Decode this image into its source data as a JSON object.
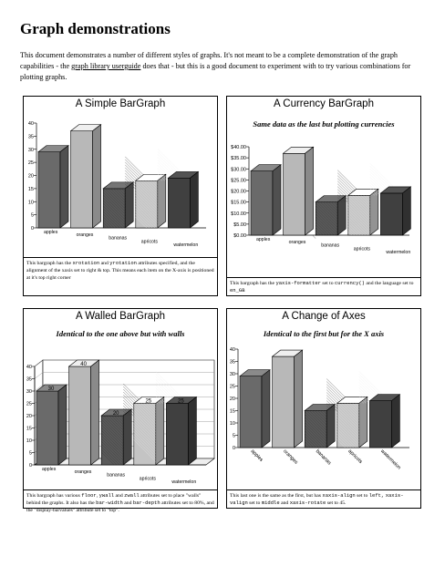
{
  "doc": {
    "title": "Graph demonstrations",
    "intro_before_link": "This document demonstrates a number of different styles of graphs. It's not meant to be a complete demonstration of the graph capabilities - the ",
    "intro_link": "graph library userguide",
    "intro_after_link": " does that - but this is a good document to experiment with to try various combinations for plotting graphs."
  },
  "panels": [
    {
      "title": "A Simple BarGraph",
      "subtitle": "",
      "caption": [
        {
          "t": "This bargraph has the "
        },
        {
          "t": "xrotation",
          "mono": true
        },
        {
          "t": " and "
        },
        {
          "t": "yrotation",
          "mono": true
        },
        {
          "t": " attributes specified, and the alignment of the xaxis set to right & top. This means each item on the X-axis is positioned at it's top right corner"
        }
      ]
    },
    {
      "title": "A Currency BarGraph",
      "subtitle": "Same data as the last but plotting currencies",
      "caption": [
        {
          "t": "This bargraph has the "
        },
        {
          "t": "yaxis-formatter",
          "mono": true
        },
        {
          "t": " set to "
        },
        {
          "t": "currency()",
          "mono": true
        },
        {
          "t": " and the language set to "
        },
        {
          "t": "en_GB",
          "mono": true
        }
      ]
    },
    {
      "title": "A Walled BarGraph",
      "subtitle": "Identical to the one above but with walls",
      "caption": [
        {
          "t": "This bargraph has various "
        },
        {
          "t": "floor",
          "mono": true
        },
        {
          "t": ", "
        },
        {
          "t": "ywall",
          "mono": true
        },
        {
          "t": " and "
        },
        {
          "t": "zwall",
          "mono": true
        },
        {
          "t": " attributes set to place \"walls\" behind the graphs. It also has the "
        },
        {
          "t": "bar-width",
          "mono": true
        },
        {
          "t": " and "
        },
        {
          "t": "bar-depth",
          "mono": true
        },
        {
          "t": " attributes set to 80%, and the \"display-barvalues\" attribute set to \"top\"."
        }
      ]
    },
    {
      "title": "A Change of Axes",
      "subtitle": "Identical to the first but for the X axis",
      "caption": [
        {
          "t": "This last one is the same as the first, but has "
        },
        {
          "t": "xaxis-align",
          "mono": true
        },
        {
          "t": " set to "
        },
        {
          "t": "left,",
          "mono": true
        },
        {
          "t": " "
        },
        {
          "t": "xaxis-valign",
          "mono": true
        },
        {
          "t": " set to "
        },
        {
          "t": "middle",
          "mono": true
        },
        {
          "t": " and "
        },
        {
          "t": "xaxis-rotate",
          "mono": true
        },
        {
          "t": " set to 45."
        }
      ]
    }
  ],
  "chart_data": [
    {
      "type": "bar",
      "title": "A Simple BarGraph",
      "categories": [
        "apples",
        "oranges",
        "bananas",
        "apricots",
        "watermelon"
      ],
      "values": [
        29,
        37,
        15,
        18,
        19
      ],
      "ylim": [
        0,
        40
      ],
      "yticks": [
        "0",
        "5",
        "10",
        "15",
        "20",
        "25",
        "30",
        "35",
        "40"
      ],
      "fills": [
        "#6a6a6a",
        "#b8b8b8",
        "#5a5a5a",
        "#c4c4c4",
        "#404040"
      ]
    },
    {
      "type": "bar",
      "title": "A Currency BarGraph",
      "subtitle": "Same data as the last but plotting currencies",
      "categories": [
        "apples",
        "oranges",
        "bananas",
        "apricots",
        "watermelon"
      ],
      "values": [
        29,
        37,
        15,
        18,
        19
      ],
      "ylim": [
        0,
        40
      ],
      "yticks": [
        "$0.00",
        "$5.00",
        "$10.00",
        "$15.00",
        "$20.00",
        "$25.00",
        "$30.00",
        "$35.00",
        "$40.00"
      ],
      "fills": [
        "#6a6a6a",
        "#b8b8b8",
        "#5a5a5a",
        "#c4c4c4",
        "#404040"
      ]
    },
    {
      "type": "bar",
      "title": "A Walled BarGraph",
      "subtitle": "Identical to the one above but with walls",
      "categories": [
        "apples",
        "oranges",
        "bananas",
        "apricots",
        "watermelon"
      ],
      "values": [
        30,
        40,
        20,
        25,
        25
      ],
      "ylim": [
        0,
        40
      ],
      "yticks": [
        "0",
        "5",
        "10",
        "15",
        "20",
        "25",
        "30",
        "35",
        "40"
      ],
      "bar_labels": [
        "30",
        "40",
        "20",
        "25",
        "25"
      ],
      "walls": true,
      "fills": [
        "#6a6a6a",
        "#b8b8b8",
        "#5a5a5a",
        "#c4c4c4",
        "#404040"
      ]
    },
    {
      "type": "bar",
      "title": "A Change of Axes",
      "subtitle": "Identical to the first but for the X axis",
      "categories": [
        "apples",
        "oranges",
        "bananas",
        "apricots",
        "watermelon"
      ],
      "values": [
        29,
        37,
        15,
        18,
        19
      ],
      "ylim": [
        0,
        40
      ],
      "yticks": [
        "0",
        "5",
        "10",
        "15",
        "20",
        "25",
        "30",
        "35",
        "40"
      ],
      "xrotate": 45,
      "fills": [
        "#6a6a6a",
        "#b8b8b8",
        "#5a5a5a",
        "#c4c4c4",
        "#404040"
      ]
    }
  ]
}
